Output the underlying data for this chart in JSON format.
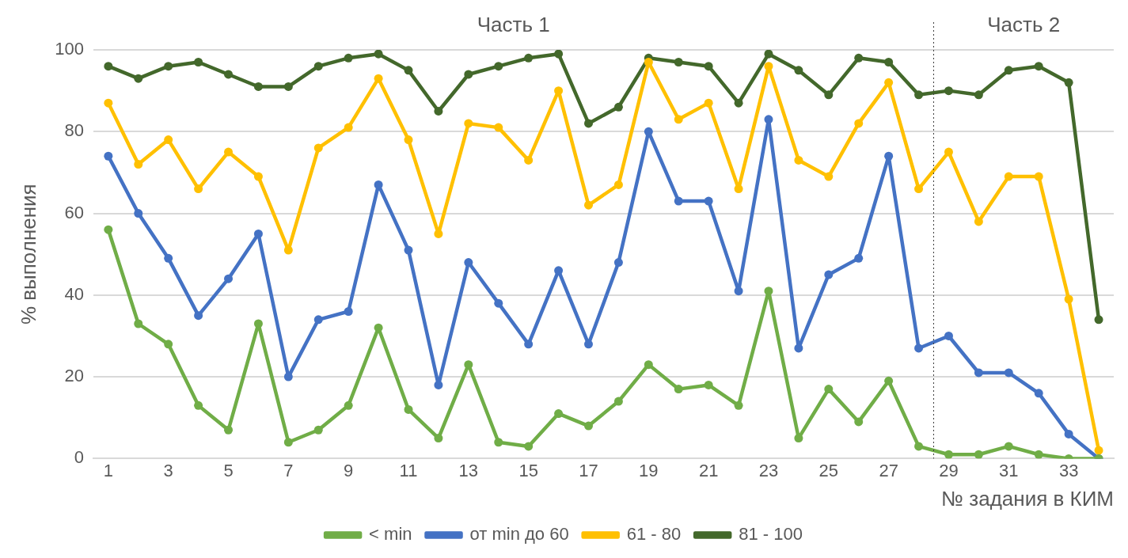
{
  "chart_data": {
    "type": "line",
    "xlabel": "№ задания в КИМ",
    "ylabel": "% выполнения",
    "annotations": [
      "Часть 1",
      "Часть 2"
    ],
    "x": [
      1,
      2,
      3,
      4,
      5,
      6,
      7,
      8,
      9,
      10,
      11,
      12,
      13,
      14,
      15,
      16,
      17,
      18,
      19,
      20,
      21,
      22,
      23,
      24,
      25,
      26,
      27,
      28,
      29,
      30,
      31,
      32,
      33,
      34
    ],
    "series": [
      {
        "name": "< min",
        "color": "#70ad47",
        "values": [
          56,
          33,
          28,
          13,
          7,
          33,
          4,
          7,
          13,
          32,
          12,
          5,
          23,
          4,
          3,
          11,
          8,
          14,
          23,
          17,
          18,
          13,
          41,
          5,
          17,
          9,
          19,
          3,
          1,
          1,
          3,
          1,
          0,
          0
        ]
      },
      {
        "name": "от min до 60",
        "color": "#4472c4",
        "values": [
          74,
          60,
          49,
          35,
          44,
          55,
          20,
          34,
          36,
          67,
          51,
          18,
          48,
          38,
          28,
          46,
          28,
          48,
          80,
          63,
          63,
          41,
          83,
          27,
          45,
          49,
          74,
          27,
          30,
          21,
          21,
          16,
          6,
          0
        ]
      },
      {
        "name": "61 - 80",
        "color": "#ffc000",
        "values": [
          87,
          72,
          78,
          66,
          75,
          69,
          51,
          76,
          81,
          93,
          78,
          55,
          82,
          81,
          73,
          90,
          62,
          67,
          97,
          83,
          87,
          66,
          96,
          73,
          69,
          82,
          92,
          66,
          75,
          58,
          69,
          69,
          39,
          2
        ]
      },
      {
        "name": "81 - 100",
        "color": "#43682b",
        "values": [
          96,
          93,
          96,
          97,
          94,
          91,
          91,
          96,
          98,
          99,
          95,
          85,
          94,
          96,
          98,
          99,
          82,
          86,
          98,
          97,
          96,
          87,
          99,
          95,
          89,
          98,
          97,
          89,
          90,
          89,
          95,
          96,
          92,
          34
        ]
      }
    ],
    "xlim": [
      0.5,
      34.5
    ],
    "xticks": [
      1,
      3,
      5,
      7,
      9,
      11,
      13,
      15,
      17,
      19,
      21,
      23,
      25,
      27,
      29,
      31,
      33
    ],
    "ylim": [
      0,
      100
    ],
    "yticks": [
      0,
      20,
      40,
      60,
      80,
      100
    ],
    "ref_lines": [
      {
        "axis": "x",
        "value": 28.5,
        "color": "#404040",
        "line_style": "dotted"
      }
    ],
    "grid": "y",
    "legend": "bottom",
    "marker": "circle",
    "line_style": "solid"
  }
}
